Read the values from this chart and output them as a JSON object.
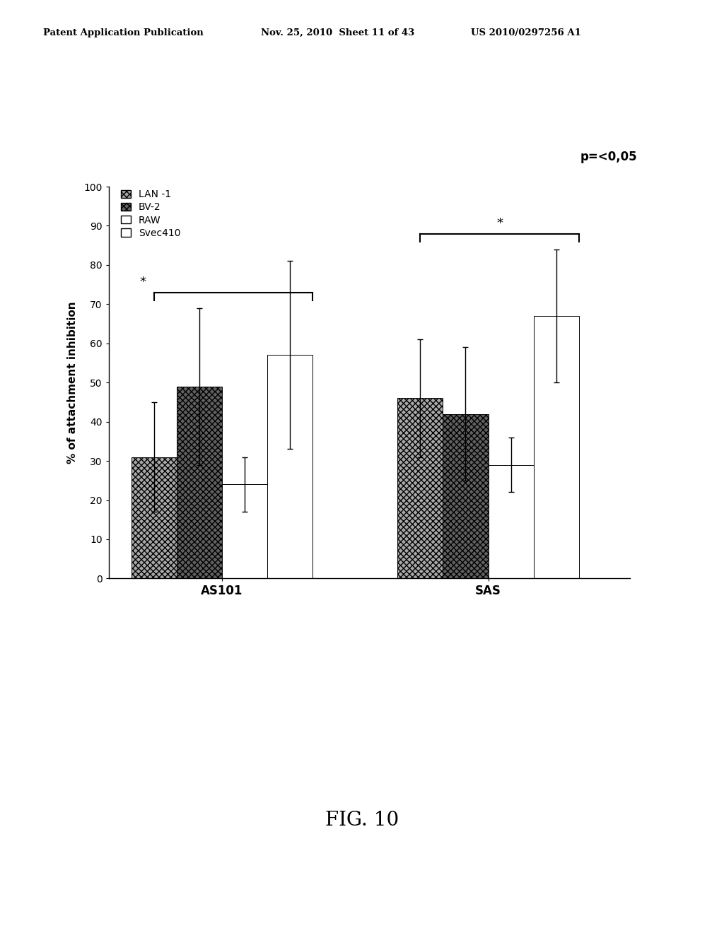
{
  "groups": [
    "AS101",
    "SAS"
  ],
  "series": [
    "LAN-1",
    "BV-2",
    "RAW",
    "Svec410"
  ],
  "values": {
    "AS101": [
      31,
      49,
      24,
      57
    ],
    "SAS": [
      46,
      42,
      29,
      67
    ]
  },
  "errors": {
    "AS101": [
      14,
      20,
      7,
      24
    ],
    "SAS": [
      15,
      17,
      7,
      17
    ]
  },
  "ylabel": "% of attachment inhibition",
  "ylim": [
    0,
    100
  ],
  "yticks": [
    0,
    10,
    20,
    30,
    40,
    50,
    60,
    70,
    80,
    90,
    100
  ],
  "group_labels": [
    "AS101",
    "SAS"
  ],
  "pvalue_text": "p=<0,05",
  "fig_title": "FIG. 10",
  "header_left": "Patent Application Publication",
  "header_mid": "Nov. 25, 2010  Sheet 11 of 43",
  "header_right": "US 2010/0297256 A1",
  "background_color": "#ffffff",
  "bar_width": 0.08,
  "group_centers": [
    0.25,
    0.72
  ]
}
